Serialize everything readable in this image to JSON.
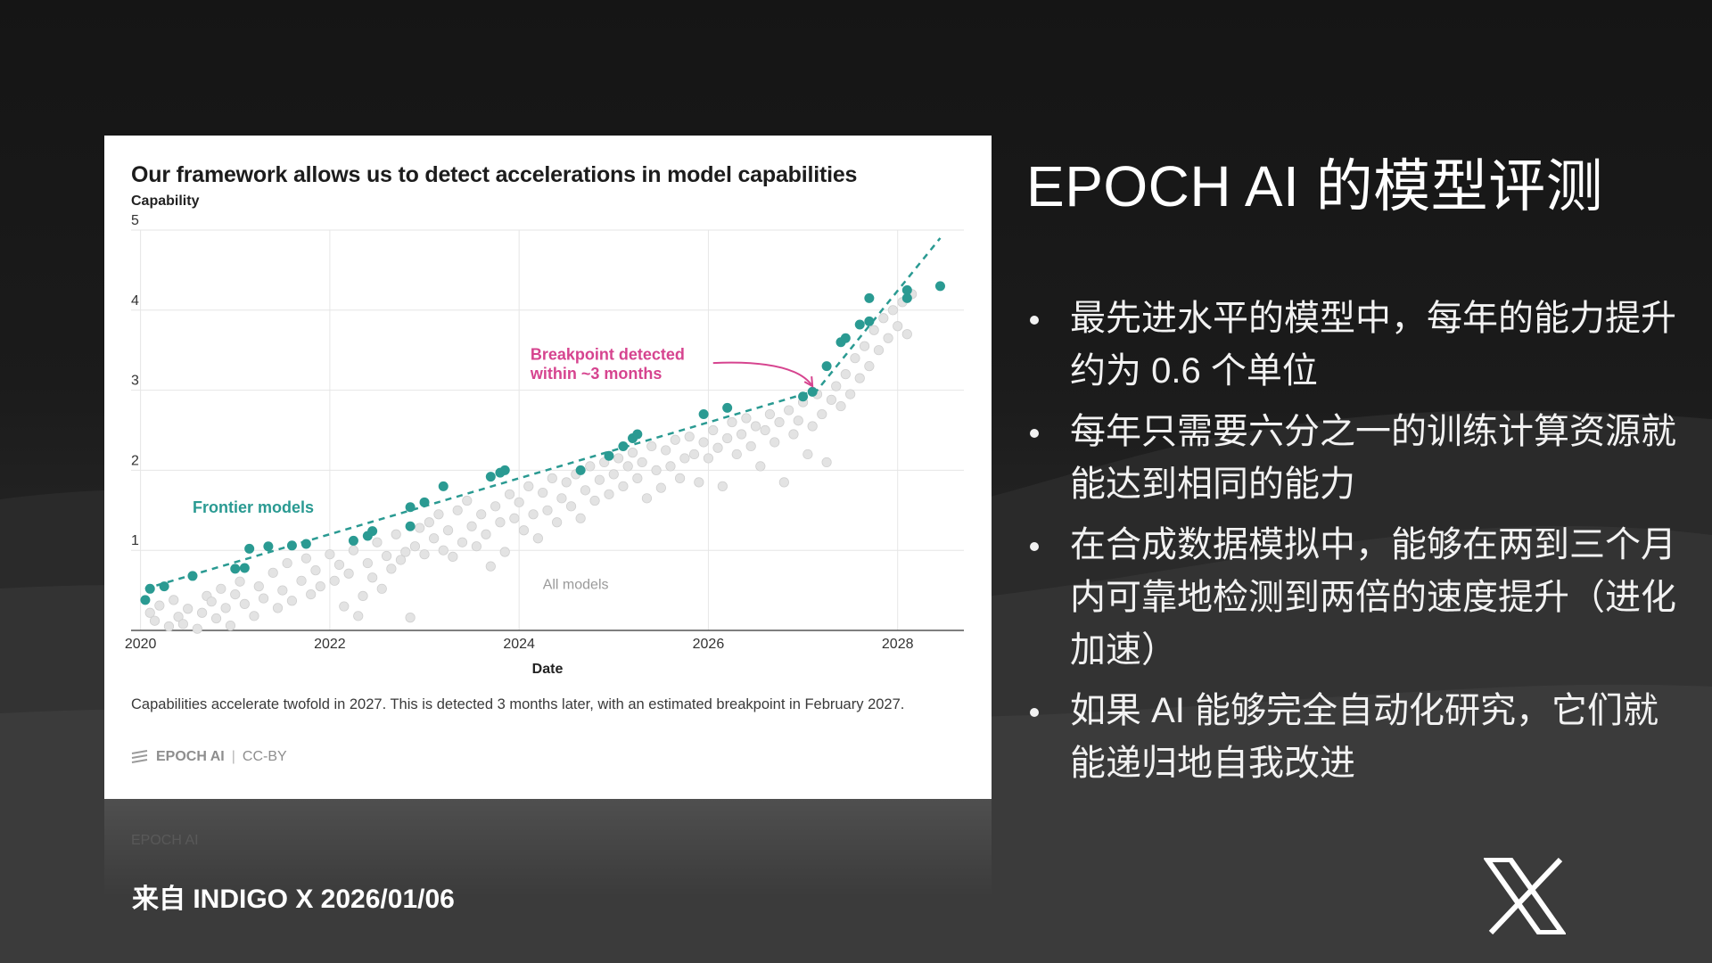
{
  "slide": {
    "title": "EPOCH AI 的模型评测",
    "bullets": [
      "最先进水平的模型中，每年的能力提升约为 0.6 个单位",
      "每年只需要六分之一的训练计算资源就能达到相同的能力",
      "在合成数据模拟中，能够在两到三个月内可靠地检测到两倍的速度提升（进化加速）",
      "如果 AI 能够完全自动化研究，它们就能递归地自我改进"
    ],
    "source": "来自 INDIGO X 2026/01/06",
    "logo_icon": "x-logo-icon"
  },
  "card": {
    "caption": "Capabilities accelerate twofold in 2027. This is detected 3 months later, with an estimated breakpoint in February 2027.",
    "brand": "EPOCH AI",
    "license": "CC-BY"
  },
  "chart_data": {
    "type": "scatter",
    "title": "Our framework allows us to detect accelerations in model capabilities",
    "ylabel": "Capability",
    "xlabel": "Date",
    "xlim": [
      2019.9,
      2028.7
    ],
    "ylim": [
      0,
      5
    ],
    "x_ticks": [
      2020,
      2022,
      2024,
      2026,
      2028
    ],
    "y_ticks": [
      1,
      2,
      3,
      4,
      5
    ],
    "grid": true,
    "colors": {
      "frontier": "#2a9a92",
      "all_models": "#e3e3e3",
      "annotation": "#d6448f",
      "grid": "#e6e6e6"
    },
    "annotations": [
      {
        "text": "Frontier models",
        "x": 2020.55,
        "y": 1.47,
        "color": "teal"
      },
      {
        "text": "Breakpoint detected",
        "x": 2024.12,
        "y": 3.38,
        "color": "pink"
      },
      {
        "text": "within ~3 months",
        "x": 2024.12,
        "y": 3.14,
        "color": "pink"
      },
      {
        "text": "All models",
        "x": 2024.25,
        "y": 0.52,
        "color": "gray"
      }
    ],
    "trend_line": [
      [
        2020.05,
        0.52
      ],
      [
        2027.15,
        3.0
      ],
      [
        2028.45,
        4.9
      ]
    ],
    "arrow": {
      "from": [
        2026.05,
        3.34
      ],
      "to": [
        2027.1,
        3.05
      ]
    },
    "series": [
      {
        "name": "Frontier models",
        "points": [
          [
            2020.05,
            0.38
          ],
          [
            2020.1,
            0.52
          ],
          [
            2020.25,
            0.55
          ],
          [
            2020.55,
            0.68
          ],
          [
            2021.0,
            0.77
          ],
          [
            2021.1,
            0.78
          ],
          [
            2021.15,
            1.02
          ],
          [
            2021.35,
            1.05
          ],
          [
            2021.6,
            1.06
          ],
          [
            2021.75,
            1.08
          ],
          [
            2022.25,
            1.12
          ],
          [
            2022.4,
            1.18
          ],
          [
            2022.45,
            1.24
          ],
          [
            2022.85,
            1.3
          ],
          [
            2022.85,
            1.54
          ],
          [
            2023.0,
            1.6
          ],
          [
            2023.2,
            1.8
          ],
          [
            2023.7,
            1.92
          ],
          [
            2023.8,
            1.97
          ],
          [
            2023.85,
            2.0
          ],
          [
            2024.65,
            2.0
          ],
          [
            2024.95,
            2.18
          ],
          [
            2025.1,
            2.3
          ],
          [
            2025.2,
            2.4
          ],
          [
            2025.25,
            2.45
          ],
          [
            2025.95,
            2.7
          ],
          [
            2026.2,
            2.78
          ],
          [
            2027.0,
            2.92
          ],
          [
            2027.1,
            2.98
          ],
          [
            2027.25,
            3.3
          ],
          [
            2027.4,
            3.6
          ],
          [
            2027.45,
            3.65
          ],
          [
            2027.6,
            3.82
          ],
          [
            2027.7,
            3.86
          ],
          [
            2027.7,
            4.15
          ],
          [
            2028.1,
            4.15
          ],
          [
            2028.1,
            4.25
          ],
          [
            2028.45,
            4.3
          ]
        ]
      },
      {
        "name": "All models",
        "points": [
          [
            2020.1,
            0.22
          ],
          [
            2020.15,
            0.12
          ],
          [
            2020.2,
            0.31
          ],
          [
            2020.3,
            0.05
          ],
          [
            2020.35,
            0.38
          ],
          [
            2020.4,
            0.17
          ],
          [
            2020.45,
            0.08
          ],
          [
            2020.5,
            0.27
          ],
          [
            2020.6,
            0.02
          ],
          [
            2020.65,
            0.22
          ],
          [
            2020.7,
            0.43
          ],
          [
            2020.75,
            0.36
          ],
          [
            2020.8,
            0.15
          ],
          [
            2020.85,
            0.52
          ],
          [
            2020.9,
            0.28
          ],
          [
            2020.95,
            0.06
          ],
          [
            2021.0,
            0.45
          ],
          [
            2021.05,
            0.61
          ],
          [
            2021.1,
            0.33
          ],
          [
            2021.2,
            0.18
          ],
          [
            2021.25,
            0.55
          ],
          [
            2021.3,
            0.4
          ],
          [
            2021.4,
            0.72
          ],
          [
            2021.45,
            0.28
          ],
          [
            2021.5,
            0.5
          ],
          [
            2021.55,
            0.84
          ],
          [
            2021.6,
            0.37
          ],
          [
            2021.7,
            0.62
          ],
          [
            2021.75,
            0.9
          ],
          [
            2021.8,
            0.45
          ],
          [
            2021.85,
            0.75
          ],
          [
            2021.9,
            0.55
          ],
          [
            2022.0,
            0.95
          ],
          [
            2022.05,
            0.62
          ],
          [
            2022.1,
            0.82
          ],
          [
            2022.15,
            0.3
          ],
          [
            2022.2,
            0.71
          ],
          [
            2022.25,
            1.0
          ],
          [
            2022.3,
            0.18
          ],
          [
            2022.35,
            0.43
          ],
          [
            2022.4,
            0.84
          ],
          [
            2022.45,
            0.66
          ],
          [
            2022.5,
            1.1
          ],
          [
            2022.55,
            0.52
          ],
          [
            2022.6,
            0.93
          ],
          [
            2022.65,
            0.77
          ],
          [
            2022.7,
            1.2
          ],
          [
            2022.75,
            0.88
          ],
          [
            2022.8,
            0.98
          ],
          [
            2022.85,
            0.16
          ],
          [
            2022.9,
            1.05
          ],
          [
            2022.95,
            1.28
          ],
          [
            2023.0,
            0.95
          ],
          [
            2023.05,
            1.35
          ],
          [
            2023.1,
            1.15
          ],
          [
            2023.15,
            1.45
          ],
          [
            2023.2,
            1.0
          ],
          [
            2023.25,
            1.25
          ],
          [
            2023.3,
            0.92
          ],
          [
            2023.35,
            1.5
          ],
          [
            2023.4,
            1.1
          ],
          [
            2023.45,
            1.62
          ],
          [
            2023.5,
            1.3
          ],
          [
            2023.55,
            1.05
          ],
          [
            2023.6,
            1.45
          ],
          [
            2023.65,
            1.2
          ],
          [
            2023.7,
            0.8
          ],
          [
            2023.75,
            1.55
          ],
          [
            2023.8,
            1.35
          ],
          [
            2023.85,
            0.98
          ],
          [
            2023.9,
            1.7
          ],
          [
            2023.95,
            1.4
          ],
          [
            2024.0,
            1.6
          ],
          [
            2024.05,
            1.25
          ],
          [
            2024.1,
            1.8
          ],
          [
            2024.15,
            1.45
          ],
          [
            2024.2,
            1.15
          ],
          [
            2024.25,
            1.72
          ],
          [
            2024.3,
            1.5
          ],
          [
            2024.35,
            1.9
          ],
          [
            2024.4,
            1.35
          ],
          [
            2024.45,
            1.65
          ],
          [
            2024.5,
            1.85
          ],
          [
            2024.55,
            1.55
          ],
          [
            2024.6,
            1.95
          ],
          [
            2024.65,
            1.4
          ],
          [
            2024.7,
            1.75
          ],
          [
            2024.75,
            2.05
          ],
          [
            2024.8,
            1.62
          ],
          [
            2024.85,
            1.88
          ],
          [
            2024.9,
            2.1
          ],
          [
            2024.95,
            1.7
          ],
          [
            2025.0,
            1.95
          ],
          [
            2025.05,
            2.15
          ],
          [
            2025.1,
            1.8
          ],
          [
            2025.15,
            2.05
          ],
          [
            2025.2,
            2.22
          ],
          [
            2025.25,
            1.9
          ],
          [
            2025.3,
            2.1
          ],
          [
            2025.35,
            1.65
          ],
          [
            2025.4,
            2.3
          ],
          [
            2025.45,
            2.0
          ],
          [
            2025.5,
            1.78
          ],
          [
            2025.55,
            2.25
          ],
          [
            2025.6,
            2.05
          ],
          [
            2025.65,
            2.38
          ],
          [
            2025.7,
            1.9
          ],
          [
            2025.75,
            2.15
          ],
          [
            2025.8,
            2.42
          ],
          [
            2025.85,
            2.2
          ],
          [
            2025.9,
            1.85
          ],
          [
            2025.95,
            2.35
          ],
          [
            2026.0,
            2.15
          ],
          [
            2026.05,
            2.5
          ],
          [
            2026.1,
            2.28
          ],
          [
            2026.15,
            1.8
          ],
          [
            2026.2,
            2.4
          ],
          [
            2026.25,
            2.6
          ],
          [
            2026.3,
            2.2
          ],
          [
            2026.35,
            2.45
          ],
          [
            2026.4,
            2.65
          ],
          [
            2026.45,
            2.3
          ],
          [
            2026.5,
            2.55
          ],
          [
            2026.55,
            2.05
          ],
          [
            2026.6,
            2.5
          ],
          [
            2026.65,
            2.7
          ],
          [
            2026.7,
            2.35
          ],
          [
            2026.75,
            2.6
          ],
          [
            2026.8,
            1.85
          ],
          [
            2026.85,
            2.75
          ],
          [
            2026.9,
            2.45
          ],
          [
            2026.95,
            2.62
          ],
          [
            2027.0,
            2.85
          ],
          [
            2027.05,
            2.2
          ],
          [
            2027.1,
            2.55
          ],
          [
            2027.15,
            2.95
          ],
          [
            2027.2,
            2.7
          ],
          [
            2027.25,
            2.1
          ],
          [
            2027.3,
            2.88
          ],
          [
            2027.35,
            3.05
          ],
          [
            2027.4,
            2.8
          ],
          [
            2027.45,
            3.2
          ],
          [
            2027.5,
            2.95
          ],
          [
            2027.55,
            3.4
          ],
          [
            2027.6,
            3.15
          ],
          [
            2027.65,
            3.55
          ],
          [
            2027.7,
            3.3
          ],
          [
            2027.75,
            3.75
          ],
          [
            2027.8,
            3.5
          ],
          [
            2027.85,
            3.9
          ],
          [
            2027.9,
            3.65
          ],
          [
            2027.95,
            4.0
          ],
          [
            2028.0,
            3.8
          ],
          [
            2028.05,
            4.1
          ],
          [
            2028.1,
            3.7
          ],
          [
            2028.15,
            4.2
          ]
        ]
      }
    ]
  }
}
